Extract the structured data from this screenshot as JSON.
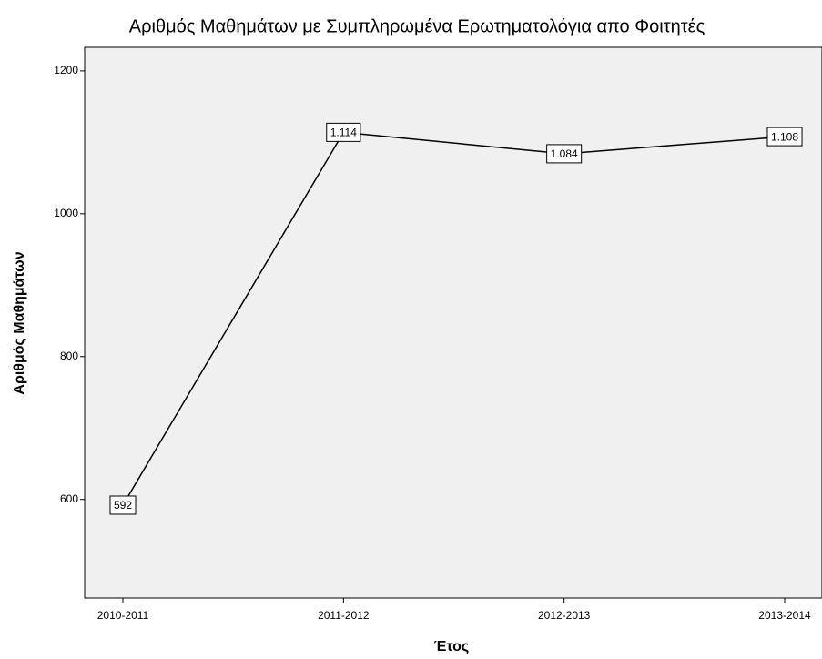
{
  "chart_data": {
    "type": "line",
    "title": "Αριθμός Μαθημάτων με Συμπληρωμένα Ερωτηματολόγια απο Φοιτητές",
    "x_label": "Έτος",
    "y_label": "Αριθμός Μαθημάτων",
    "categories": [
      "2010-2011",
      "2011-2012",
      "2012-2013",
      "2013-2014"
    ],
    "values": [
      592,
      1114,
      1084,
      1108
    ],
    "value_labels": [
      "592",
      "1.114",
      "1.084",
      "1.108"
    ],
    "color": "#000000",
    "ylim": [
      462,
      1233
    ],
    "yticks": [
      600,
      800,
      1000,
      1200
    ]
  }
}
